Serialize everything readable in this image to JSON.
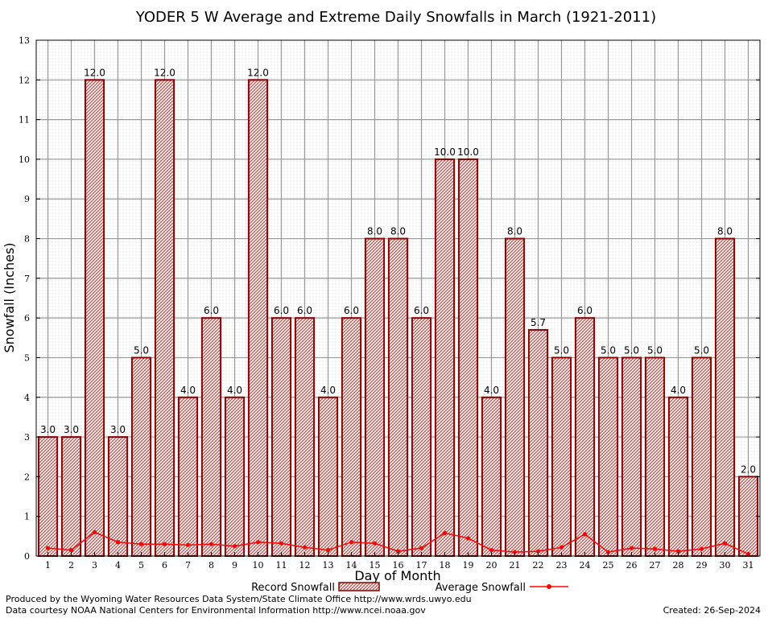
{
  "chart_data": {
    "type": "bar",
    "title": "YODER 5 W Average and Extreme Daily Snowfalls in March (1921-2011)",
    "xlabel": "Day of Month",
    "ylabel": "Snowfall (Inches)",
    "ylim": [
      0,
      13
    ],
    "yticks": [
      0,
      1,
      2,
      3,
      4,
      5,
      6,
      7,
      8,
      9,
      10,
      11,
      12,
      13
    ],
    "categories": [
      "1",
      "2",
      "3",
      "4",
      "5",
      "6",
      "7",
      "8",
      "9",
      "10",
      "11",
      "12",
      "13",
      "14",
      "15",
      "16",
      "17",
      "18",
      "19",
      "20",
      "21",
      "22",
      "23",
      "24",
      "25",
      "26",
      "27",
      "28",
      "29",
      "30",
      "31"
    ],
    "series": [
      {
        "name": "Record Snowfall",
        "type": "bar",
        "values": [
          3.0,
          3.0,
          12.0,
          3.0,
          5.0,
          12.0,
          4.0,
          6.0,
          4.0,
          12.0,
          6.0,
          6.0,
          4.0,
          6.0,
          8.0,
          8.0,
          6.0,
          10.0,
          10.0,
          4.0,
          8.0,
          5.7,
          5.0,
          6.0,
          5.0,
          5.0,
          5.0,
          4.0,
          5.0,
          8.0,
          2.0
        ],
        "labels": [
          "3.0",
          "3.0",
          "12.0",
          "3.0",
          "5.0",
          "12.0",
          "4.0",
          "6.0",
          "4.0",
          "12.0",
          "6.0",
          "6.0",
          "4.0",
          "6.0",
          "8.0",
          "8.0",
          "6.0",
          "10.0",
          "10.0",
          "4.0",
          "8.0",
          "5.7",
          "5.0",
          "6.0",
          "5.0",
          "5.0",
          "5.0",
          "4.0",
          "5.0",
          "8.0",
          "2.0"
        ]
      },
      {
        "name": "Average Snowfall",
        "type": "line",
        "values": [
          0.2,
          0.15,
          0.6,
          0.35,
          0.3,
          0.3,
          0.28,
          0.3,
          0.25,
          0.35,
          0.32,
          0.22,
          0.15,
          0.35,
          0.32,
          0.12,
          0.2,
          0.58,
          0.45,
          0.15,
          0.1,
          0.12,
          0.22,
          0.55,
          0.1,
          0.2,
          0.18,
          0.12,
          0.18,
          0.32,
          0.05
        ]
      }
    ],
    "grid": true,
    "legend": "bottom-center",
    "colors": {
      "bar_edge": "#8b0000",
      "bar_fill": "#c46a6a",
      "line": "#ff0000",
      "grid": "#999999"
    }
  },
  "footer": {
    "credit_1": "Produced by the Wyoming Water Resources Data System/State Climate Office http://www.wrds.uwyo.edu",
    "credit_2": "Data courtesy NOAA National Centers for Environmental Information http://www.ncei.noaa.gov",
    "created": "Created:  26-Sep-2024"
  }
}
